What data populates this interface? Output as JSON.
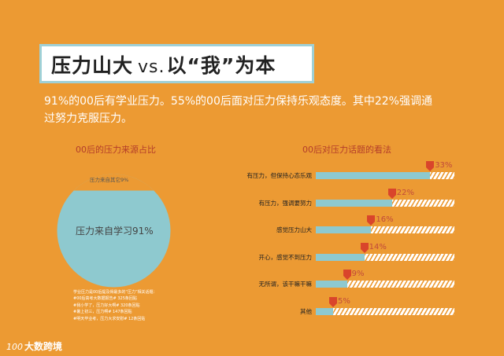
{
  "header": {
    "title_part1": "压力山大",
    "title_vs": "vs.",
    "title_part2": "以“我”为本"
  },
  "summary": "91%的00后有学业压力。55%的00后面对压力保持乐观态度。其中22%强调通过努力克服压力。",
  "colors": {
    "background": "#ec9a33",
    "teal": "#8ec9cf",
    "marker": "#d9452b",
    "heading": "#b43d2a"
  },
  "chart_data": [
    {
      "type": "pie",
      "title": "00后的压力来源占比",
      "labels": [
        "压力来自学习91%",
        "压力来自其它9%"
      ],
      "values": [
        91,
        9
      ],
      "notes_title": "学业压力是00后提及得最多的“压力”相关话题：",
      "notes": [
        "#00后高考大数据报告# 325条回贴",
        "#我小学了，压力好大啊# 320条回贴",
        "#暑上初三，压力啊# 147条回贴",
        "#明天毕业考，压力大求安慰# 12条回贴"
      ]
    },
    {
      "type": "bar",
      "title": "00后对压力话题的看法",
      "categories": [
        "有压力，但保持心态乐观",
        "有压力，强调要努力",
        "感觉压力山大",
        "开心，感觉不到压力",
        "无所谓，该干嘛干嘛",
        "其他"
      ],
      "values": [
        33,
        22,
        16,
        14,
        9,
        5
      ],
      "value_labels": [
        "33%",
        "22%",
        "16%",
        "14%",
        "9%",
        "5%"
      ],
      "xlim": [
        0,
        40
      ]
    }
  ],
  "footer": {
    "logo_mark": "100",
    "logo_text": "大数跨境"
  }
}
